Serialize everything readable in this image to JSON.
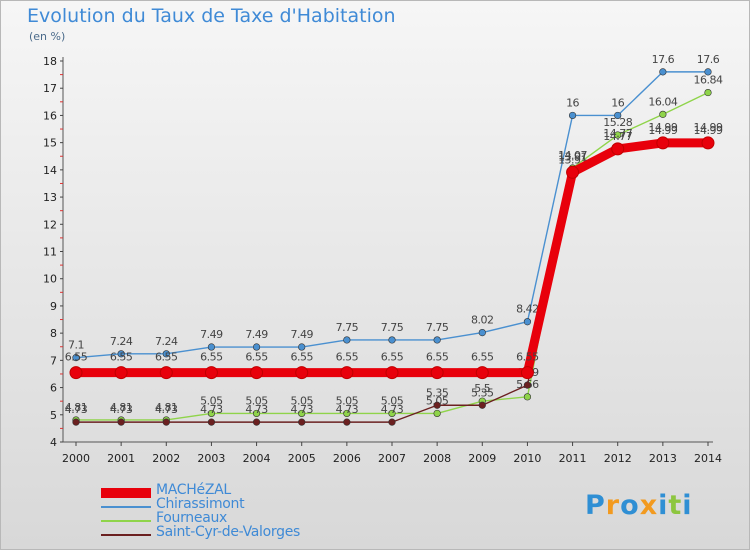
{
  "title": "Evolution du Taux de Taxe d'Habitation",
  "subtitle": "(en %)",
  "logo": {
    "letters": [
      "P",
      "r",
      "o",
      "x",
      "i",
      "t",
      "i"
    ],
    "colors": [
      "#2f8fd4",
      "#f29a1f",
      "#2f8fd4",
      "#f29a1f",
      "#2f8fd4",
      "#8dc63f",
      "#2f8fd4"
    ]
  },
  "chart_data": {
    "type": "line",
    "x": [
      2000,
      2001,
      2002,
      2003,
      2004,
      2005,
      2006,
      2007,
      2008,
      2009,
      2010,
      2011,
      2012,
      2013,
      2014
    ],
    "ylim": [
      4,
      18
    ],
    "yticks": [
      4,
      5,
      6,
      7,
      8,
      9,
      10,
      11,
      12,
      13,
      14,
      15,
      16,
      17,
      18
    ],
    "grid": false,
    "legend_position": "bottom-left",
    "series": [
      {
        "name": "MACHéZAL",
        "color": "#e8000b",
        "values": [
          6.55,
          6.55,
          6.55,
          6.55,
          6.55,
          6.55,
          6.55,
          6.55,
          6.55,
          6.55,
          6.55,
          13.91,
          14.77,
          14.99,
          14.99
        ],
        "labels": [
          "6.55",
          "6.55",
          "6.55",
          "6.55",
          "6.55",
          "6.55",
          "6.55",
          "6.55",
          "6.55",
          "6.55",
          "6.55",
          "13.91",
          "14.77",
          "14.99",
          "14.99"
        ]
      },
      {
        "name": "Chirassimont",
        "color": "#4a90d0",
        "values": [
          7.1,
          7.24,
          7.24,
          7.49,
          7.49,
          7.49,
          7.75,
          7.75,
          7.75,
          8.02,
          8.42,
          16,
          16,
          17.6,
          17.6
        ],
        "labels": [
          "7.1",
          "7.24",
          "7.24",
          "7.49",
          "7.49",
          "7.49",
          "7.75",
          "7.75",
          "7.75",
          "8.02",
          "8.42",
          "16",
          "16",
          "17.6",
          "17.6"
        ]
      },
      {
        "name": "Fourneaux",
        "color": "#8fd44a",
        "values": [
          4.81,
          4.81,
          4.81,
          5.05,
          5.05,
          5.05,
          5.05,
          5.05,
          5.05,
          5.5,
          5.66,
          14.07,
          15.28,
          16.04,
          16.84
        ],
        "labels": [
          "4.81",
          "4.81",
          "4.81",
          "5.05",
          "5.05",
          "5.05",
          "5.05",
          "5.05",
          "5.05",
          "5.5",
          "5.66",
          "14.07",
          "15.28",
          "16.04",
          "16.84"
        ]
      },
      {
        "name": "Saint-Cyr-de-Valorges",
        "color": "#6b2020",
        "values": [
          4.73,
          4.73,
          4.73,
          4.73,
          4.73,
          4.73,
          4.73,
          4.73,
          5.35,
          5.35,
          6.09,
          13.91,
          14.77,
          14.99,
          14.99
        ],
        "labels": [
          "4.73",
          "4.73",
          "4.73",
          "4.73",
          "4.73",
          "4.73",
          "4.73",
          "4.73",
          "5.35",
          "5.35",
          "6.09",
          "13.91",
          "14.77",
          "14.99",
          "14.99"
        ]
      }
    ]
  }
}
